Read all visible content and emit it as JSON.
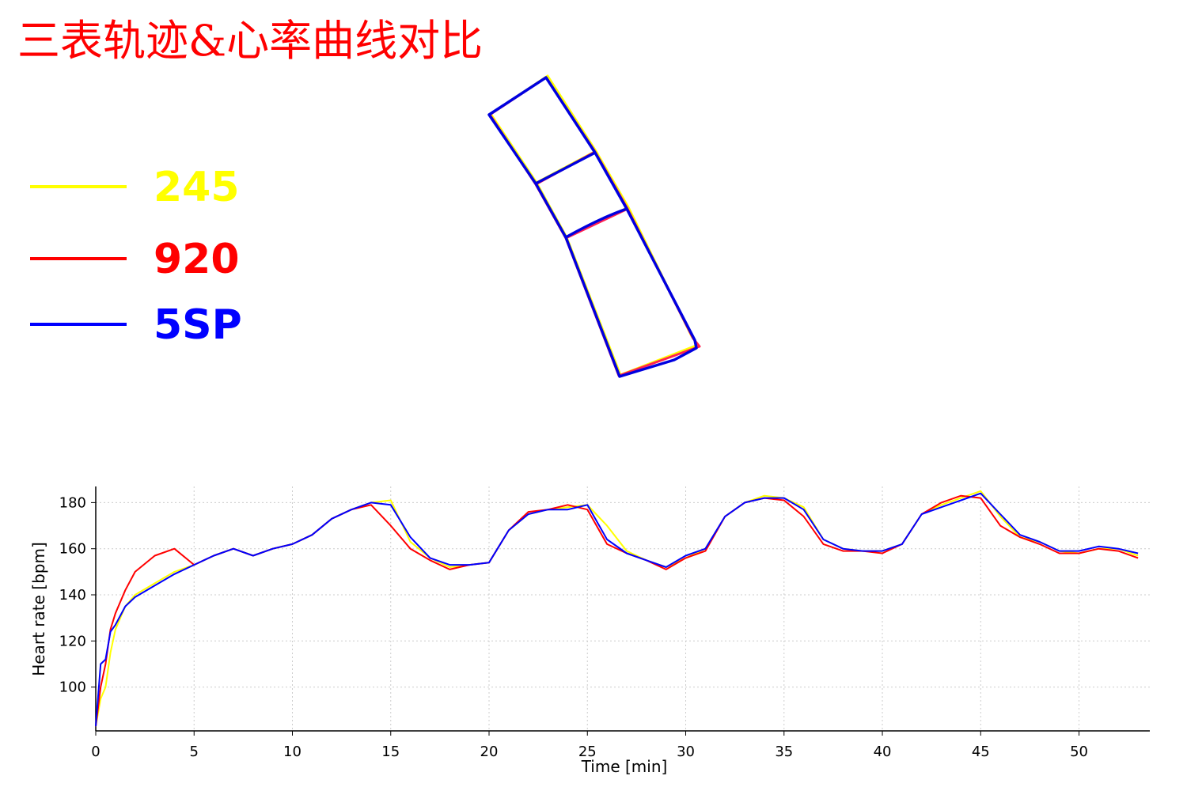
{
  "chart_data": {
    "type": "line",
    "title": "三表轨迹&心率曲线对比",
    "x_label": "Time [min]",
    "y_label": "Heart rate [bpm]",
    "xlim": [
      0,
      53.6
    ],
    "ylim": [
      81,
      187
    ],
    "xticks": [
      0,
      5,
      10,
      15,
      20,
      25,
      30,
      35,
      40,
      45,
      50
    ],
    "yticks": [
      100,
      120,
      140,
      160,
      180
    ],
    "grid": true,
    "x": [
      0,
      0.25,
      0.5,
      0.75,
      1,
      1.5,
      2,
      3,
      4,
      5,
      6,
      7,
      8,
      9,
      10,
      11,
      12,
      13,
      14,
      15,
      16,
      17,
      18,
      19,
      20,
      21,
      22,
      23,
      24,
      25,
      26,
      27,
      28,
      29,
      30,
      31,
      32,
      33,
      34,
      35,
      36,
      37,
      38,
      39,
      40,
      41,
      42,
      43,
      44,
      45,
      46,
      47,
      48,
      49,
      50,
      51,
      52,
      53
    ],
    "series": [
      {
        "name": "245",
        "color": "#ffff00",
        "values": [
          83,
          95,
          100,
          115,
          125,
          135,
          140,
          145,
          150,
          153,
          157,
          160,
          157,
          160,
          162,
          166,
          173,
          177,
          180,
          181,
          163,
          156,
          152,
          153,
          154,
          168,
          175,
          177,
          178,
          179,
          170,
          159,
          155,
          152,
          156,
          160,
          174,
          180,
          183,
          182,
          178,
          164,
          160,
          159,
          159,
          162,
          175,
          179,
          182,
          185,
          174,
          165,
          163,
          159,
          158,
          160,
          160,
          157
        ]
      },
      {
        "name": "920",
        "color": "#ff0000",
        "values": [
          83,
          100,
          110,
          125,
          132,
          142,
          150,
          157,
          160,
          153,
          157,
          160,
          157,
          160,
          162,
          166,
          173,
          177,
          179,
          170,
          160,
          155,
          151,
          153,
          154,
          168,
          176,
          177,
          179,
          177,
          162,
          158,
          155,
          151,
          156,
          159,
          174,
          180,
          182,
          181,
          174,
          162,
          159,
          159,
          158,
          162,
          175,
          180,
          183,
          182,
          170,
          165,
          162,
          158,
          158,
          160,
          159,
          156
        ]
      },
      {
        "name": "5SP",
        "color": "#0000ff",
        "values": [
          83,
          110,
          112,
          124,
          127,
          135,
          139,
          144,
          149,
          153,
          157,
          160,
          157,
          160,
          162,
          166,
          173,
          177,
          180,
          179,
          165,
          156,
          153,
          153,
          154,
          168,
          175,
          177,
          177,
          179,
          164,
          158,
          155,
          152,
          157,
          160,
          174,
          180,
          182,
          182,
          177,
          164,
          160,
          159,
          159,
          162,
          175,
          178,
          181,
          184,
          175,
          166,
          163,
          159,
          159,
          161,
          160,
          158
        ]
      }
    ]
  }
}
